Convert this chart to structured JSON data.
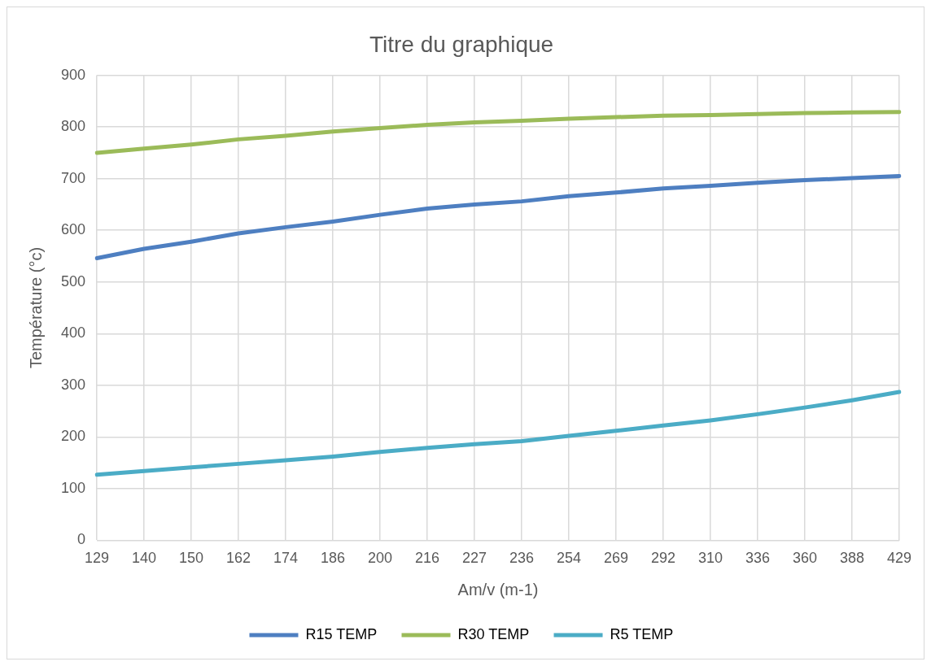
{
  "chart_data": {
    "type": "line",
    "title": "Titre du graphique",
    "xlabel": "Am/v (m-1)",
    "ylabel": "Température (°c)",
    "categories": [
      "129",
      "140",
      "150",
      "162",
      "174",
      "186",
      "200",
      "216",
      "227",
      "236",
      "254",
      "269",
      "292",
      "310",
      "336",
      "360",
      "388",
      "429"
    ],
    "series": [
      {
        "name": "R15 TEMP",
        "color": "#4e7fc1",
        "values": [
          546,
          564,
          578,
          594,
          606,
          617,
          630,
          642,
          650,
          656,
          666,
          673,
          681,
          686,
          692,
          697,
          701,
          705
        ]
      },
      {
        "name": "R30 TEMP",
        "color": "#9bbb59",
        "values": [
          750,
          758,
          766,
          776,
          783,
          791,
          798,
          804,
          809,
          812,
          816,
          819,
          822,
          823,
          825,
          827,
          828,
          829
        ]
      },
      {
        "name": "R5 TEMP",
        "color": "#4bacc6",
        "values": [
          127,
          134,
          141,
          148,
          155,
          162,
          171,
          179,
          186,
          192,
          202,
          212,
          222,
          232,
          244,
          257,
          271,
          287
        ]
      }
    ],
    "ylim": [
      0,
      900
    ],
    "yticks": [
      0,
      100,
      200,
      300,
      400,
      500,
      600,
      700,
      800,
      900
    ],
    "grid": true,
    "legend": "bottom",
    "marker": "none",
    "line_style": "solid"
  }
}
